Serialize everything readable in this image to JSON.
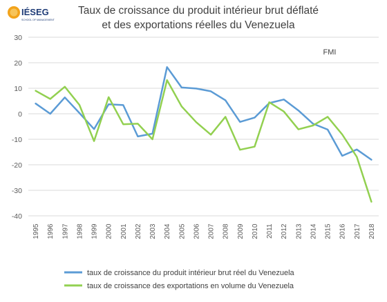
{
  "logo": {
    "text": "IÉSEG",
    "subtext": "SCHOOL OF MANAGEMENT"
  },
  "chart_data": {
    "type": "line",
    "title": "Taux de croissance du produit intérieur brut déflaté",
    "subtitle": "et des exportations réelles du Venezuela",
    "annotation": "FMI",
    "x": [
      1995,
      1996,
      1997,
      1998,
      1999,
      2000,
      2001,
      2002,
      2003,
      2004,
      2005,
      2006,
      2007,
      2008,
      2009,
      2010,
      2011,
      2012,
      2013,
      2014,
      2015,
      2016,
      2017,
      2018
    ],
    "x_tick_labels": [
      "1995",
      "1996",
      "1997",
      "1998",
      "1999",
      "2000",
      "2001",
      "2002",
      "2003",
      "2004",
      "2005",
      "2006",
      "2007",
      "2008",
      "2009",
      "2010",
      "2011",
      "2012",
      "2013",
      "2014",
      "2015",
      "2016",
      "2017",
      "2018"
    ],
    "y_ticks": [
      30,
      20,
      10,
      0,
      -10,
      -20,
      -30,
      -40
    ],
    "y_tick_labels": [
      "30",
      "20",
      "10",
      "0",
      "-10",
      "-20",
      "-30",
      "-40"
    ],
    "ylim": [
      -40,
      30
    ],
    "grid": "horizontal",
    "legend_position": "bottom",
    "series": [
      {
        "name": "taux de croissance du produit intérieur brut réel du Venezuela",
        "color": "#5b9bd5",
        "values": [
          4,
          0,
          6.4,
          0.3,
          -6,
          3.7,
          3.4,
          -8.9,
          -7.8,
          18.3,
          10.3,
          9.9,
          8.8,
          5.3,
          -3.2,
          -1.5,
          4.2,
          5.6,
          1.3,
          -3.9,
          -6.2,
          -16.5,
          -14,
          -18
        ]
      },
      {
        "name": "taux de croissance des exportations en volume du Venezuela",
        "color": "#92d050",
        "values": [
          9,
          5.8,
          10.6,
          3.5,
          -10.7,
          6.5,
          -4.1,
          -3.9,
          -10,
          13.2,
          2.9,
          -3.3,
          -8.2,
          -1.2,
          -14.1,
          -12.9,
          4.5,
          0.9,
          -6.1,
          -4.6,
          -1.2,
          -8.1,
          -16.9,
          -34.5
        ]
      }
    ]
  }
}
